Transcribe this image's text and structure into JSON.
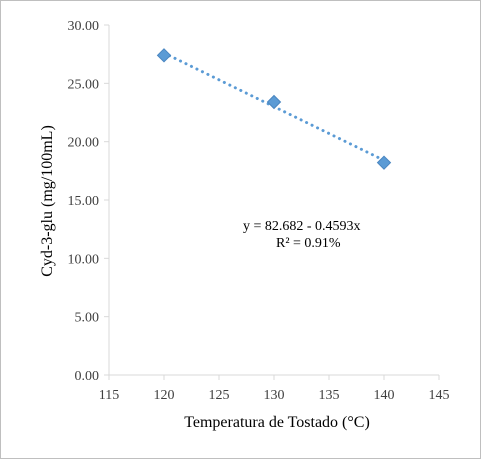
{
  "chart_data": {
    "type": "scatter",
    "title": "",
    "xlabel": "Temperatura de Tostado (°C)",
    "ylabel": "Cyd-3-glu (mg/100mL)",
    "xlim": [
      115,
      145
    ],
    "ylim": [
      0,
      30
    ],
    "x_ticks": [
      "115",
      "120",
      "125",
      "130",
      "135",
      "140",
      "145"
    ],
    "y_ticks": [
      "0.00",
      "5.00",
      "10.00",
      "15.00",
      "20.00",
      "25.00",
      "30.00"
    ],
    "grid": false,
    "legend": "none",
    "series": [
      {
        "x": [
          120,
          130,
          140
        ],
        "y": [
          27.4,
          23.4,
          18.2
        ],
        "marker": "diamond",
        "color": "#5b9bd5"
      }
    ],
    "trendline": {
      "type": "linear",
      "style": "dotted",
      "color": "#5b9bd5",
      "x_range": [
        120,
        140
      ],
      "intercept": 82.682,
      "slope": -0.4593
    },
    "annotations": {
      "equation": "y =  82.682 - 0.4593x",
      "r_squared": "R² = 0.91%"
    }
  }
}
